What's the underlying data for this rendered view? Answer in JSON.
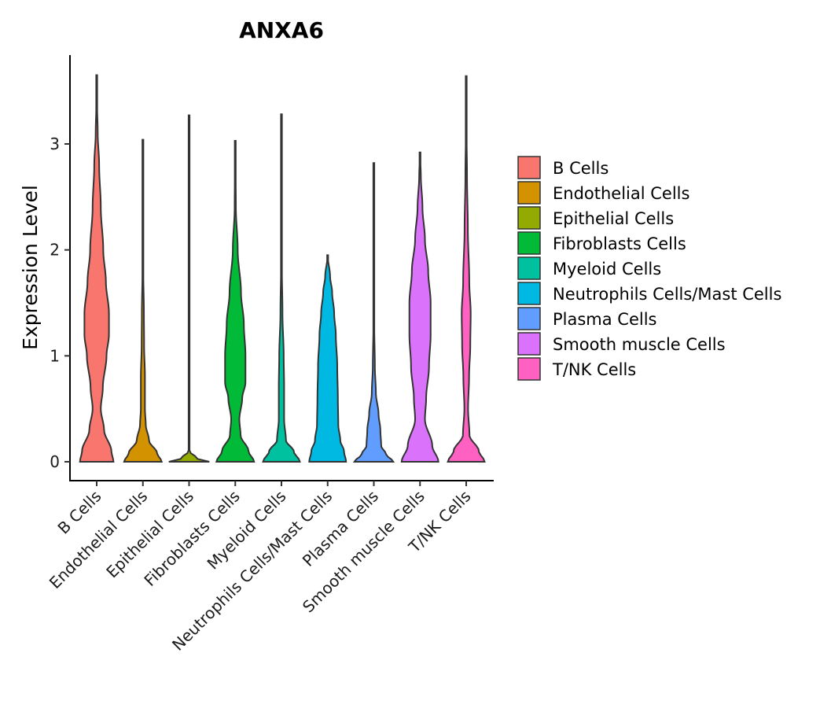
{
  "chart_data": {
    "type": "violin",
    "title": "ANXA6",
    "xlabel": "",
    "ylabel": "Expression Level",
    "ylim": [
      -0.18,
      3.85
    ],
    "yticks": [
      0,
      1,
      2,
      3
    ],
    "ytick_labels": [
      "0",
      "1",
      "2",
      "3"
    ],
    "grid": false,
    "legend_position": "right",
    "categories": [
      "B Cells",
      "Endothelial Cells",
      "Epithelial Cells",
      "Fibroblasts Cells",
      "Myeloid Cells",
      "Neutrophils Cells/Mast Cells",
      "Plasma Cells",
      "Smooth muscle Cells",
      "T/NK Cells"
    ],
    "series": [
      {
        "name": "B Cells",
        "color": "#F8766D",
        "max": 3.65,
        "profile": [
          [
            0,
            0.82
          ],
          [
            0.1,
            0.72
          ],
          [
            0.3,
            0.36
          ],
          [
            0.5,
            0.2
          ],
          [
            0.7,
            0.3
          ],
          [
            1.0,
            0.48
          ],
          [
            1.2,
            0.6
          ],
          [
            1.4,
            0.6
          ],
          [
            1.7,
            0.45
          ],
          [
            2.0,
            0.32
          ],
          [
            2.4,
            0.2
          ],
          [
            2.8,
            0.12
          ],
          [
            3.1,
            0.05
          ],
          [
            3.4,
            0.015
          ],
          [
            3.65,
            0
          ]
        ]
      },
      {
        "name": "Endothelial Cells",
        "color": "#D39200",
        "max": 3.04,
        "profile": [
          [
            0,
            0.92
          ],
          [
            0.08,
            0.7
          ],
          [
            0.2,
            0.3
          ],
          [
            0.35,
            0.14
          ],
          [
            0.5,
            0.1
          ],
          [
            0.8,
            0.1
          ],
          [
            1.1,
            0.06
          ],
          [
            1.4,
            0.05
          ],
          [
            1.8,
            0.02
          ],
          [
            2.3,
            0.01
          ],
          [
            3.04,
            0
          ]
        ]
      },
      {
        "name": "Epithelial Cells",
        "color": "#93AA00",
        "max": 3.27,
        "profile": [
          [
            0,
            0.99
          ],
          [
            0.03,
            0.4
          ],
          [
            0.1,
            0.015
          ],
          [
            3.27,
            0
          ]
        ]
      },
      {
        "name": "Fibroblasts Cells",
        "color": "#00BA38",
        "max": 3.03,
        "profile": [
          [
            0,
            0.92
          ],
          [
            0.1,
            0.65
          ],
          [
            0.25,
            0.26
          ],
          [
            0.4,
            0.2
          ],
          [
            0.6,
            0.34
          ],
          [
            0.75,
            0.5
          ],
          [
            1.0,
            0.5
          ],
          [
            1.3,
            0.42
          ],
          [
            1.6,
            0.28
          ],
          [
            2.0,
            0.12
          ],
          [
            2.4,
            0.03
          ],
          [
            3.03,
            0
          ]
        ]
      },
      {
        "name": "Myeloid Cells",
        "color": "#00C19F",
        "max": 3.28,
        "profile": [
          [
            0,
            0.9
          ],
          [
            0.1,
            0.6
          ],
          [
            0.2,
            0.22
          ],
          [
            0.4,
            0.13
          ],
          [
            0.7,
            0.13
          ],
          [
            1.0,
            0.11
          ],
          [
            1.4,
            0.05
          ],
          [
            1.9,
            0.015
          ],
          [
            3.28,
            0
          ]
        ]
      },
      {
        "name": "Neutrophils Cells/Mast Cells",
        "color": "#00B9E3",
        "max": 1.95,
        "profile": [
          [
            0,
            0.9
          ],
          [
            0.1,
            0.8
          ],
          [
            0.2,
            0.62
          ],
          [
            0.35,
            0.52
          ],
          [
            0.6,
            0.5
          ],
          [
            0.9,
            0.47
          ],
          [
            1.2,
            0.4
          ],
          [
            1.4,
            0.32
          ],
          [
            1.6,
            0.22
          ],
          [
            1.75,
            0.12
          ],
          [
            1.95,
            0
          ]
        ]
      },
      {
        "name": "Plasma Cells",
        "color": "#619CFF",
        "max": 2.82,
        "profile": [
          [
            0,
            0.95
          ],
          [
            0.07,
            0.6
          ],
          [
            0.15,
            0.36
          ],
          [
            0.3,
            0.32
          ],
          [
            0.45,
            0.23
          ],
          [
            0.65,
            0.1
          ],
          [
            0.9,
            0.05
          ],
          [
            1.3,
            0.02
          ],
          [
            1.8,
            0.008
          ],
          [
            2.82,
            0
          ]
        ]
      },
      {
        "name": "Smooth muscle Cells",
        "color": "#DB72FB",
        "max": 2.92,
        "profile": [
          [
            0,
            0.9
          ],
          [
            0.15,
            0.6
          ],
          [
            0.4,
            0.24
          ],
          [
            0.6,
            0.3
          ],
          [
            0.9,
            0.44
          ],
          [
            1.2,
            0.52
          ],
          [
            1.5,
            0.52
          ],
          [
            1.8,
            0.4
          ],
          [
            2.1,
            0.24
          ],
          [
            2.4,
            0.12
          ],
          [
            2.7,
            0.04
          ],
          [
            2.92,
            0
          ]
        ]
      },
      {
        "name": "T/NK Cells",
        "color": "#FF61C3",
        "max": 3.64,
        "profile": [
          [
            0,
            0.9
          ],
          [
            0.1,
            0.62
          ],
          [
            0.25,
            0.16
          ],
          [
            0.5,
            0.09
          ],
          [
            0.8,
            0.14
          ],
          [
            1.1,
            0.2
          ],
          [
            1.4,
            0.22
          ],
          [
            1.7,
            0.15
          ],
          [
            2.2,
            0.08
          ],
          [
            2.7,
            0.04
          ],
          [
            3.2,
            0.01
          ],
          [
            3.64,
            0
          ]
        ]
      }
    ]
  }
}
